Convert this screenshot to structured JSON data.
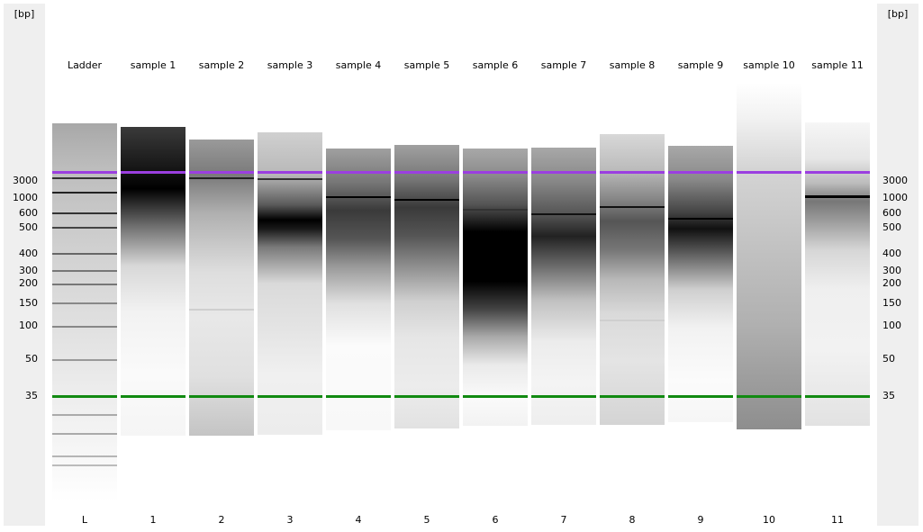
{
  "axis": {
    "unit_left": "[bp]",
    "unit_right": "[bp]",
    "ticks": [
      "3000",
      "1000",
      "600",
      "500",
      "400",
      "300",
      "200",
      "150",
      "100",
      "50",
      "35"
    ]
  },
  "lanes": [
    {
      "name": "Ladder",
      "number": "L"
    },
    {
      "name": "sample 1",
      "number": "1"
    },
    {
      "name": "sample 2",
      "number": "2"
    },
    {
      "name": "sample 3",
      "number": "3"
    },
    {
      "name": "sample 4",
      "number": "4"
    },
    {
      "name": "sample 5",
      "number": "5"
    },
    {
      "name": "sample 6",
      "number": "6"
    },
    {
      "name": "sample 7",
      "number": "7"
    },
    {
      "name": "sample 8",
      "number": "8"
    },
    {
      "name": "sample 9",
      "number": "9"
    },
    {
      "name": "sample 10",
      "number": "10"
    },
    {
      "name": "sample 11",
      "number": "11"
    }
  ],
  "colors": {
    "upper_marker": "#9b3fe0",
    "lower_marker": "#118a11",
    "axis_background": "#efefef"
  }
}
